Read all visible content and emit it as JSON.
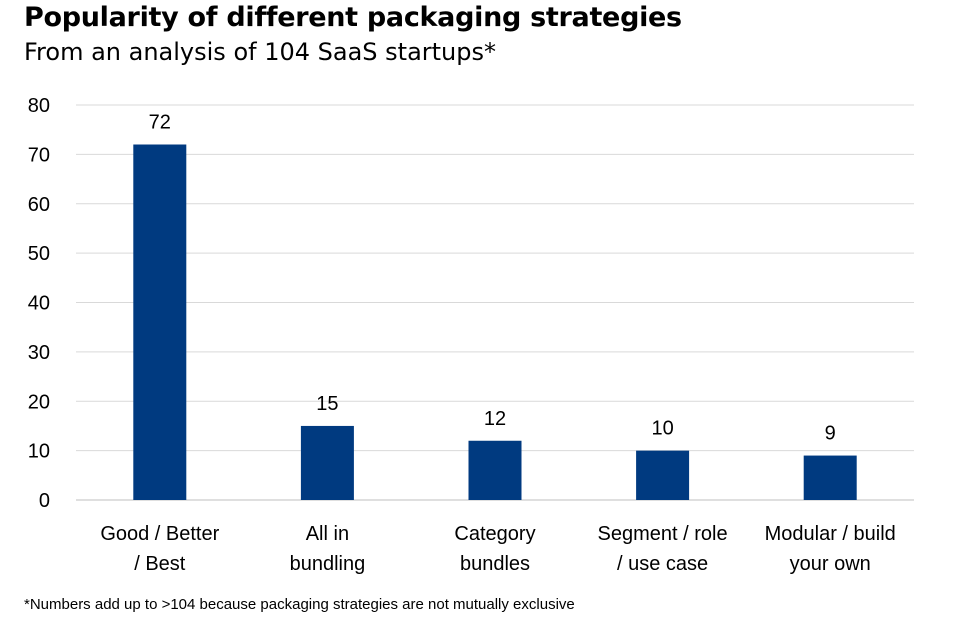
{
  "chart_data": {
    "type": "bar",
    "title": "Popularity of different packaging strategies",
    "subtitle": "From an analysis of 104 SaaS startups*",
    "categories": [
      [
        "Good / Better",
        "/ Best"
      ],
      [
        "All in",
        "bundling"
      ],
      [
        "Category",
        "bundles"
      ],
      [
        "Segment / role",
        "/ use case"
      ],
      [
        "Modular / build",
        "your own"
      ]
    ],
    "values": [
      72,
      15,
      12,
      10,
      9
    ],
    "data_labels": [
      "72",
      "15",
      "12",
      "10",
      "9"
    ],
    "ylim": [
      0,
      80
    ],
    "yticks": [
      0,
      10,
      20,
      30,
      40,
      50,
      60,
      70,
      80
    ],
    "grid": true,
    "legend": "none",
    "xlabel": "",
    "ylabel": "",
    "footnote": "*Numbers add up to >104 because packaging strategies are not mutually exclusive"
  },
  "colors": {
    "bar": "#003a80",
    "grid": "#d9d9d9",
    "axis": "#bfbfbf"
  }
}
